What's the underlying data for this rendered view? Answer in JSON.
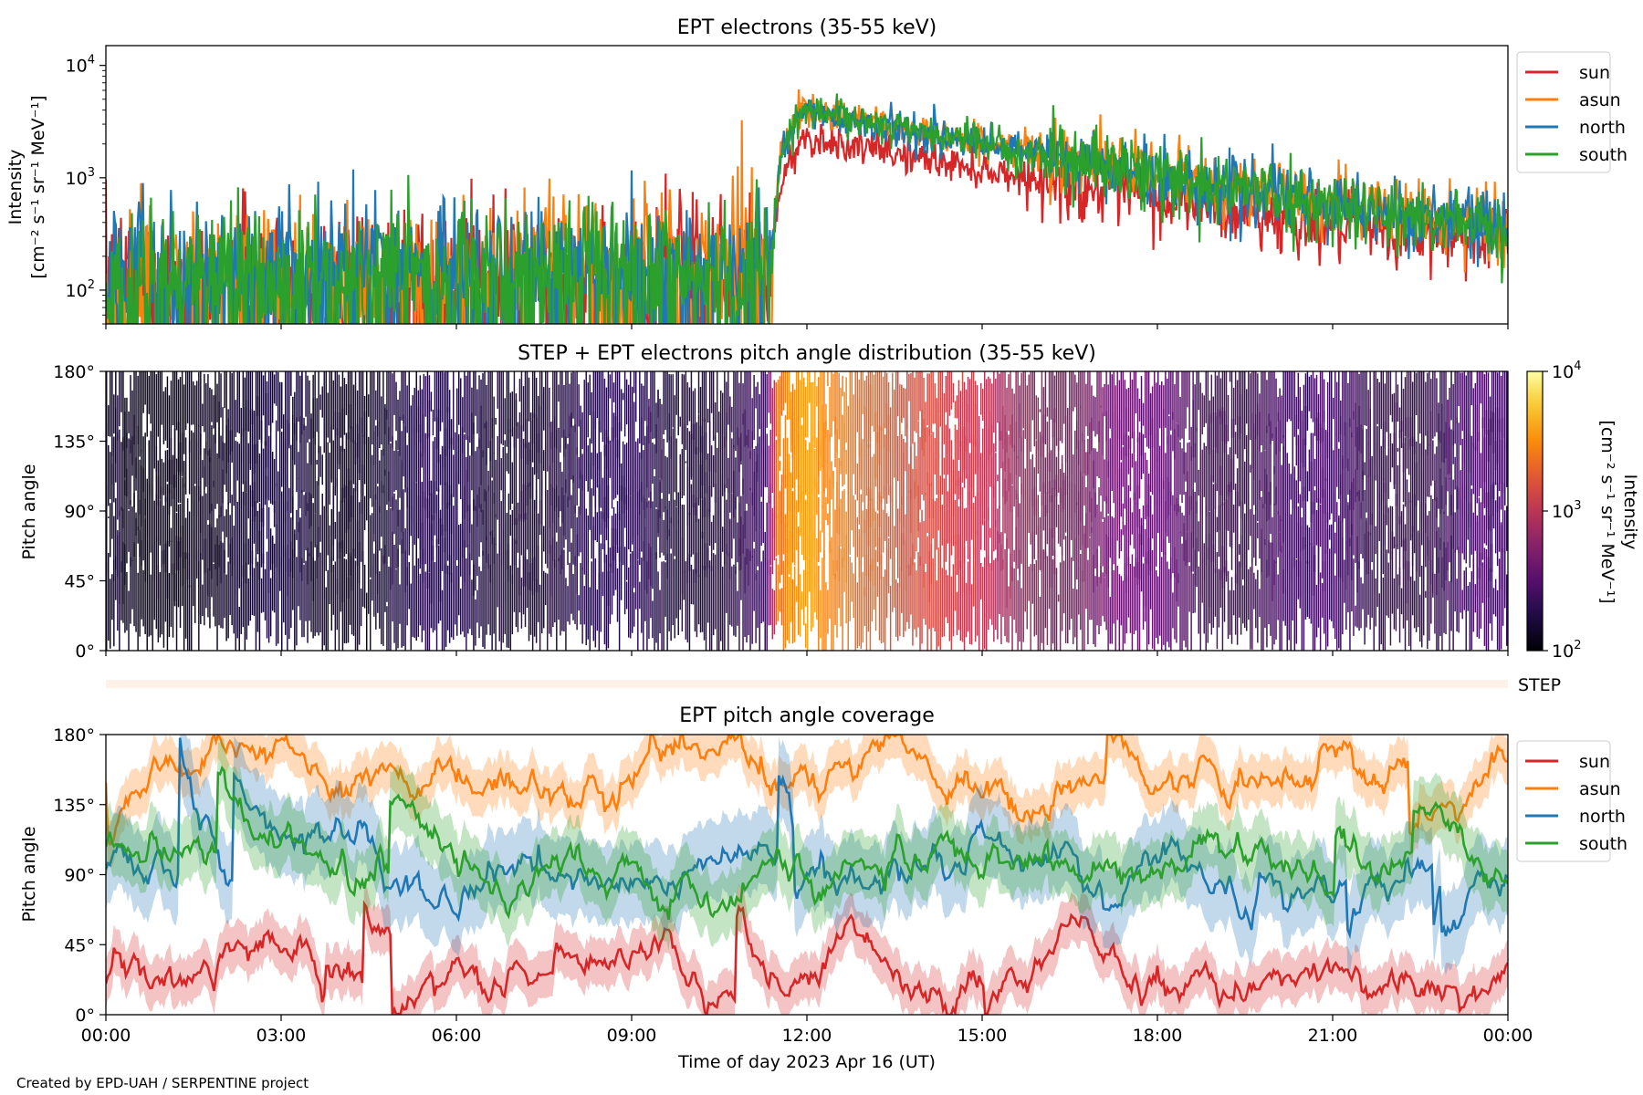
{
  "footer": "Created by EPD-UAH / SERPENTINE project",
  "chart_data": [
    {
      "type": "line",
      "title": "EPT electrons (35-55 keV)",
      "ylabel_line1": "Intensity",
      "ylabel_line2": "[cm⁻² s⁻¹ sr⁻¹ MeV⁻¹]",
      "yscale": "log",
      "ylim": [
        50,
        15000
      ],
      "yticks": [
        {
          "v": 100,
          "base": "10",
          "exp": "2"
        },
        {
          "v": 1000,
          "base": "10",
          "exp": "3"
        },
        {
          "v": 10000,
          "base": "10",
          "exp": "4"
        }
      ],
      "xlim": [
        0,
        24
      ],
      "legend_loc": "upper-right-outside",
      "series": [
        {
          "name": "sun",
          "color": "#d62728",
          "baseline": 120,
          "peak": 2200,
          "peak_time": 12.2
        },
        {
          "name": "asun",
          "color": "#ff7f0e",
          "baseline": 140,
          "peak": 4200,
          "peak_time": 11.9
        },
        {
          "name": "north",
          "color": "#1f77b4",
          "baseline": 135,
          "peak": 3800,
          "peak_time": 12.1
        },
        {
          "name": "south",
          "color": "#2ca02c",
          "baseline": 130,
          "peak": 4000,
          "peak_time": 12.0
        }
      ],
      "onset_time": 11.4,
      "late_level": 300
    },
    {
      "type": "heatmap",
      "title": "STEP + EPT electrons pitch angle distribution (35-55 keV)",
      "ylabel": "Pitch angle",
      "yticks": [
        "0°",
        "45°",
        "90°",
        "135°",
        "180°"
      ],
      "ylim": [
        0,
        180
      ],
      "xlim": [
        0,
        24
      ],
      "colorscale": "inferno",
      "clim": [
        100,
        10000
      ],
      "colorbar_label_line1": "Intensity",
      "colorbar_label_line2": "[cm⁻² s⁻¹ sr⁻¹ MeV⁻¹]",
      "colorbar_ticks": [
        {
          "v": 100,
          "base": "10",
          "exp": "2"
        },
        {
          "v": 1000,
          "base": "10",
          "exp": "3"
        },
        {
          "v": 10000,
          "base": "10",
          "exp": "4"
        }
      ],
      "intensity_profile": [
        [
          0,
          130
        ],
        [
          2,
          140
        ],
        [
          4,
          160
        ],
        [
          6,
          180
        ],
        [
          8,
          190
        ],
        [
          10,
          200
        ],
        [
          11.3,
          230
        ],
        [
          11.5,
          2600
        ],
        [
          12.0,
          3600
        ],
        [
          12.5,
          3000
        ],
        [
          13,
          2300
        ],
        [
          14,
          1500
        ],
        [
          15,
          1000
        ],
        [
          16,
          600
        ],
        [
          17,
          450
        ],
        [
          18,
          350
        ],
        [
          20,
          260
        ],
        [
          22,
          250
        ],
        [
          24,
          250
        ]
      ],
      "strip_label": "STEP",
      "strip_color": "#fff1e8"
    },
    {
      "type": "line",
      "title": "EPT pitch angle coverage",
      "ylabel": "Pitch angle",
      "xlabel": "Time of day 2023 Apr 16 (UT)",
      "yticks": [
        "0°",
        "45°",
        "90°",
        "135°",
        "180°"
      ],
      "ylim": [
        0,
        180
      ],
      "xlim": [
        0,
        24
      ],
      "xticks": [
        "00:00",
        "03:00",
        "06:00",
        "09:00",
        "12:00",
        "15:00",
        "18:00",
        "21:00",
        "00:00"
      ],
      "legend_loc": "upper-right-outside",
      "series": [
        {
          "name": "sun",
          "color": "#d62728",
          "mean": 30,
          "spread": 15
        },
        {
          "name": "asun",
          "color": "#ff7f0e",
          "mean": 155,
          "spread": 15
        },
        {
          "name": "north",
          "color": "#1f77b4",
          "mean": 90,
          "spread": 25
        },
        {
          "name": "south",
          "color": "#2ca02c",
          "mean": 95,
          "spread": 20
        }
      ]
    }
  ]
}
